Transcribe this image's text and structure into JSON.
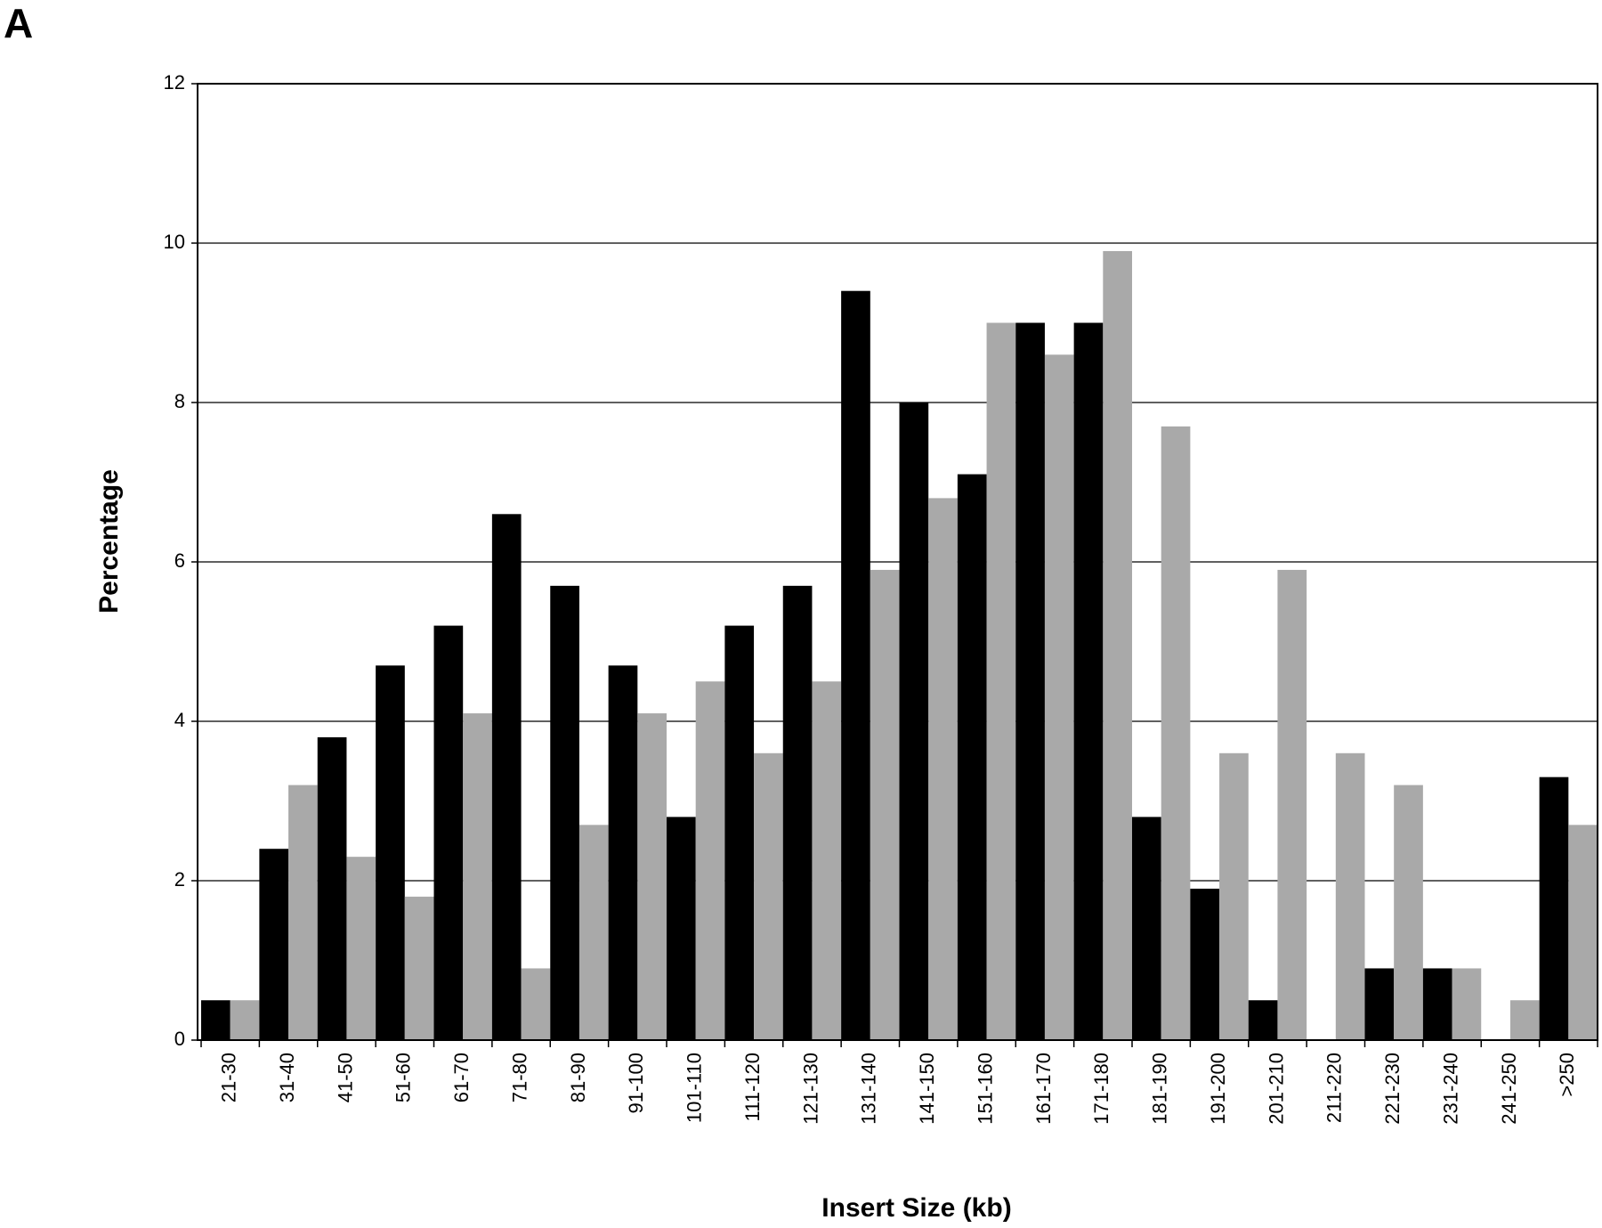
{
  "panel_label": "A",
  "chart_data": {
    "type": "bar",
    "x_label": "Insert Size (kb)",
    "y_label": "Percentage",
    "categories": [
      "21-30",
      "31-40",
      "41-50",
      "51-60",
      "61-70",
      "71-80",
      "81-90",
      "91-100",
      "101-110",
      "111-120",
      "121-130",
      "131-140",
      "141-150",
      "151-160",
      "161-170",
      "171-180",
      "181-190",
      "191-200",
      "201-210",
      "211-220",
      "221-230",
      "231-240",
      "241-250",
      ">250"
    ],
    "series": [
      {
        "color": "#000000",
        "values": [
          0.5,
          2.4,
          3.8,
          4.7,
          5.2,
          6.6,
          5.7,
          4.7,
          2.8,
          5.2,
          5.7,
          9.4,
          8.0,
          7.1,
          9.0,
          9.0,
          2.8,
          1.9,
          0.5,
          0,
          0.9,
          0.9,
          0,
          3.3
        ]
      },
      {
        "color": "#a9a9a9",
        "values": [
          0.5,
          3.2,
          2.3,
          1.8,
          4.1,
          0.9,
          2.7,
          4.1,
          4.5,
          3.6,
          4.5,
          5.9,
          6.8,
          9.0,
          8.6,
          9.9,
          7.7,
          3.6,
          5.9,
          3.6,
          3.2,
          0.9,
          0.5,
          2.7
        ]
      }
    ],
    "ylim": [
      0,
      12
    ],
    "yticks": [
      0,
      2,
      4,
      6,
      8,
      10,
      12
    ],
    "grid": true
  }
}
